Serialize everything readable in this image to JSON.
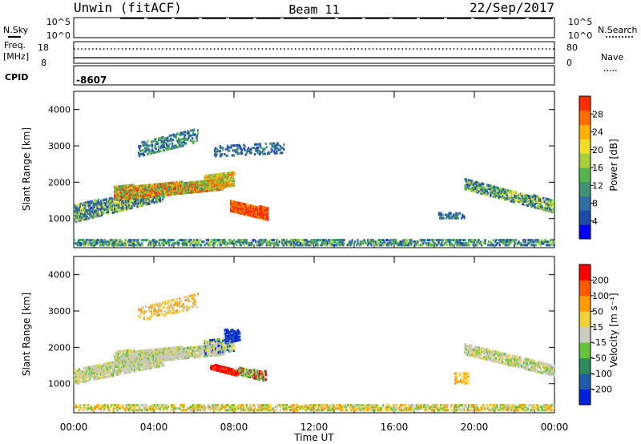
{
  "header": {
    "station": "Unwin (fitACF)",
    "beam": "Beam 11",
    "date": "22/Sep/2017"
  },
  "summary_panels": {
    "nsky_label": "N.Sky",
    "nsky_ticks": [
      "10^5",
      "10^0"
    ],
    "nsearch_label": "N.Search",
    "freq_label_line1": "Freq.",
    "freq_label_line2": "[MHz]",
    "freq_ticks": [
      "18",
      "8"
    ],
    "nave_label": "Nave",
    "nave_ticks": [
      "80",
      "0"
    ],
    "cpid_label": "CPID",
    "cpid_value": "-8607"
  },
  "chart_data": [
    {
      "type": "heatmap",
      "name": "power",
      "ylabel": "Slant Range [km]",
      "yticks": [
        1000,
        2000,
        3000,
        4000
      ],
      "ylim": [
        200,
        4500
      ],
      "xlim": [
        0,
        24
      ],
      "xticks_hours": [
        0,
        4,
        8,
        12,
        16,
        20,
        24
      ],
      "colorbar": {
        "label": "Power [dB]",
        "ticks": [
          "4",
          "8",
          "12",
          "16",
          "20",
          "24",
          "28"
        ],
        "colors": [
          "#0000ff",
          "#1e4aa8",
          "#2f6fa5",
          "#3f9373",
          "#54b64a",
          "#a7cf3d",
          "#f1dd2a",
          "#ffb000",
          "#ff7000",
          "#ff2d00"
        ]
      }
    },
    {
      "type": "heatmap",
      "name": "velocity",
      "ylabel": "Slant Range [km]",
      "yticks": [
        1000,
        2000,
        3000,
        4000
      ],
      "ylim": [
        200,
        4500
      ],
      "xlim": [
        0,
        24
      ],
      "xticks_hours": [
        0,
        4,
        8,
        12,
        16,
        20,
        24
      ],
      "colorbar": {
        "label": "Velocity [m s⁻¹]",
        "ticks": [
          "200",
          "100",
          "50",
          "15",
          "-15",
          "-50",
          "-100",
          "-200"
        ],
        "colors": [
          "#0022dd",
          "#1e5da8",
          "#2f8a5c",
          "#62c23c",
          "#cbcbbf",
          "#f2d23a",
          "#ff9c00",
          "#ff5a00",
          "#ff0000"
        ]
      }
    }
  ],
  "xaxis": {
    "tick_labels": [
      "00:00",
      "04:00",
      "08:00",
      "12:00",
      "16:00",
      "20:00",
      "00:00"
    ],
    "label": "Time UT"
  },
  "colors": {
    "ground_scatter": "#c8c8be"
  }
}
